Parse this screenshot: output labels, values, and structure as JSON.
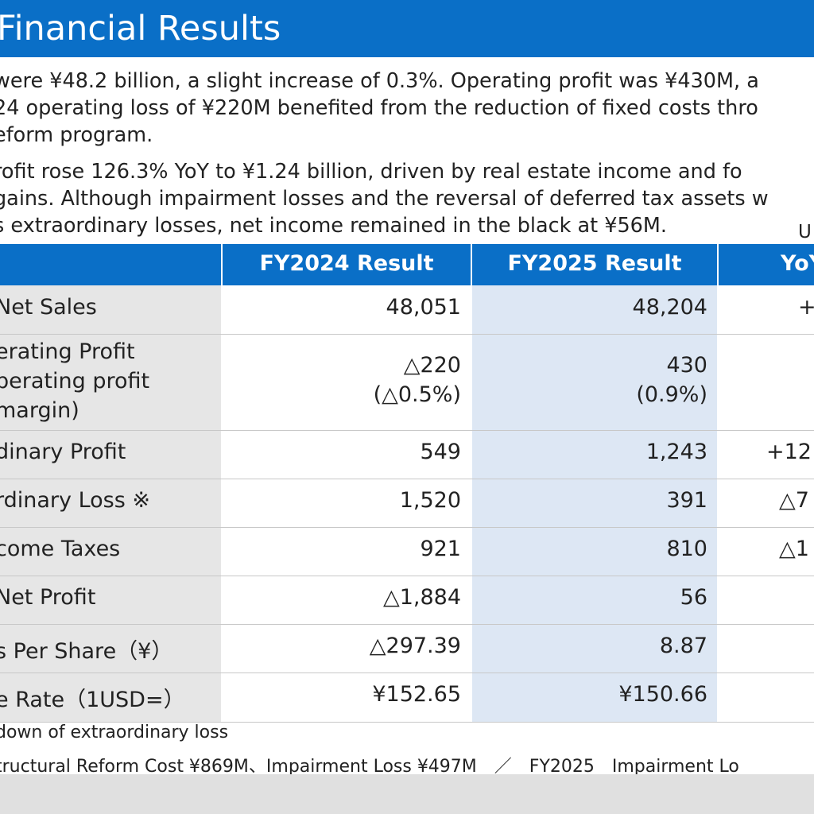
{
  "title": "Financial Results",
  "summary": {
    "para1": [
      "were ¥48.2 billion, a slight increase of 0.3%. Operating profit was ¥430M, a",
      "24 operating loss of ¥220M benefited from the reduction of fixed costs thro",
      "eform program."
    ],
    "para2": [
      "rofit rose 126.3% YoY to ¥1.24 billion, driven by real estate income and fo",
      "gains. Although impairment losses and the reversal of deferred tax assets w",
      "s extraordinary losses, net income remained in the black at ¥56M."
    ]
  },
  "unit_label": "U",
  "table": {
    "headers": {
      "fy2024": "FY2024 Result",
      "fy2025": "FY2025 Result",
      "yoy": "YoY"
    },
    "rows": [
      {
        "label": "Net Sales",
        "fy2024": "48,051",
        "fy2025": "48,204",
        "yoy": "+"
      },
      {
        "label_lines": [
          "erating Profit",
          "perating profit",
          "margin)"
        ],
        "fy2024": "△220",
        "fy2024_sub": "(△0.5%)",
        "fy2025": "430",
        "fy2025_sub": "(0.9%)",
        "yoy": ""
      },
      {
        "label": "dinary Profit",
        "fy2024": "549",
        "fy2025": "1,243",
        "yoy": "+12"
      },
      {
        "label": "rdinary Loss ※",
        "fy2024": "1,520",
        "fy2025": "391",
        "yoy": "△7"
      },
      {
        "label": "come Taxes",
        "fy2024": "921",
        "fy2025": "810",
        "yoy": "△1"
      },
      {
        "label": "Net Profit",
        "fy2024": "△1,884",
        "fy2025": "56",
        "yoy": ""
      },
      {
        "label": "s Per Share（¥）",
        "fy2024": "△297.39",
        "fy2025": "8.87",
        "yoy": ""
      },
      {
        "label": "e Rate（1USD=）",
        "fy2024": "¥152.65",
        "fy2025": "¥150.66",
        "yoy": ""
      }
    ]
  },
  "notes": {
    "line1": "down of extraordinary loss",
    "line2": "tructural Reform Cost ¥869M、Impairment Loss ¥497M　／　FY2025　Impairment Lo"
  },
  "colors": {
    "brand_blue": "#0a6fc7",
    "label_gray": "#e6e6e6",
    "highlight_blue": "#dde7f4"
  }
}
